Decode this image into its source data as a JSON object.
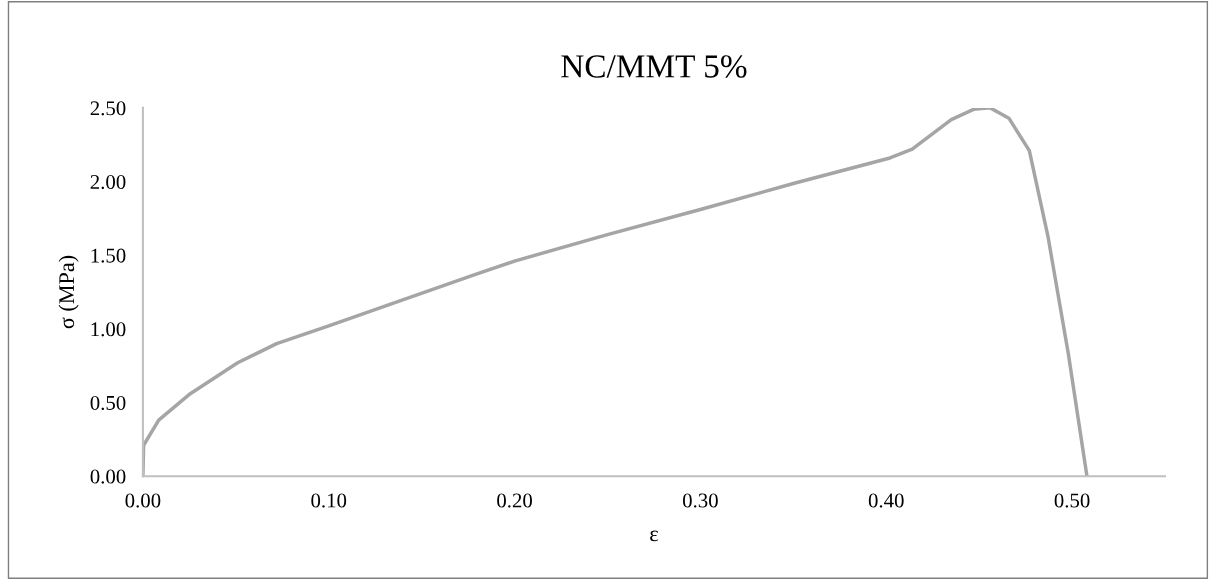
{
  "chart_data": {
    "type": "line",
    "title": "NC/MMT 5%",
    "xlabel": "ε",
    "ylabel": "σ (MPa)",
    "series": [
      {
        "color": "#a5a5a5",
        "x": [
          0,
          0.0004,
          0.0085,
          0.0255,
          0.051,
          0.072,
          0.1,
          0.136,
          0.179,
          0.2,
          0.25,
          0.3,
          0.351,
          0.402,
          0.414,
          0.435,
          0.447,
          0.456,
          0.466,
          0.477,
          0.487,
          0.498,
          0.508
        ],
        "values": [
          0,
          0.21,
          0.38,
          0.56,
          0.77,
          0.9,
          1.02,
          1.18,
          1.37,
          1.46,
          1.64,
          1.81,
          1.99,
          2.16,
          2.22,
          2.42,
          2.49,
          2.5,
          2.43,
          2.21,
          1.63,
          0.83,
          0
        ]
      }
    ],
    "xlim": [
      0,
      0.55
    ],
    "xticks": [
      {
        "value": 0,
        "label": "0.00"
      },
      {
        "value": 0.1,
        "label": "0.10"
      },
      {
        "value": 0.2,
        "label": "0.20"
      },
      {
        "value": 0.3,
        "label": "0.30"
      },
      {
        "value": 0.4,
        "label": "0.40"
      },
      {
        "value": 0.5,
        "label": "0.50"
      }
    ],
    "ylim": [
      0,
      2.5
    ],
    "yticks": [
      {
        "value": 0,
        "label": "0.00"
      },
      {
        "value": 0.5,
        "label": "0.50"
      },
      {
        "value": 1.0,
        "label": "1.00"
      },
      {
        "value": 1.5,
        "label": "1.50"
      },
      {
        "value": 2.0,
        "label": "2.00"
      },
      {
        "value": 2.5,
        "label": "2.50"
      }
    ],
    "grid": false,
    "legend": false,
    "marker": "none",
    "line_style": "solid"
  }
}
